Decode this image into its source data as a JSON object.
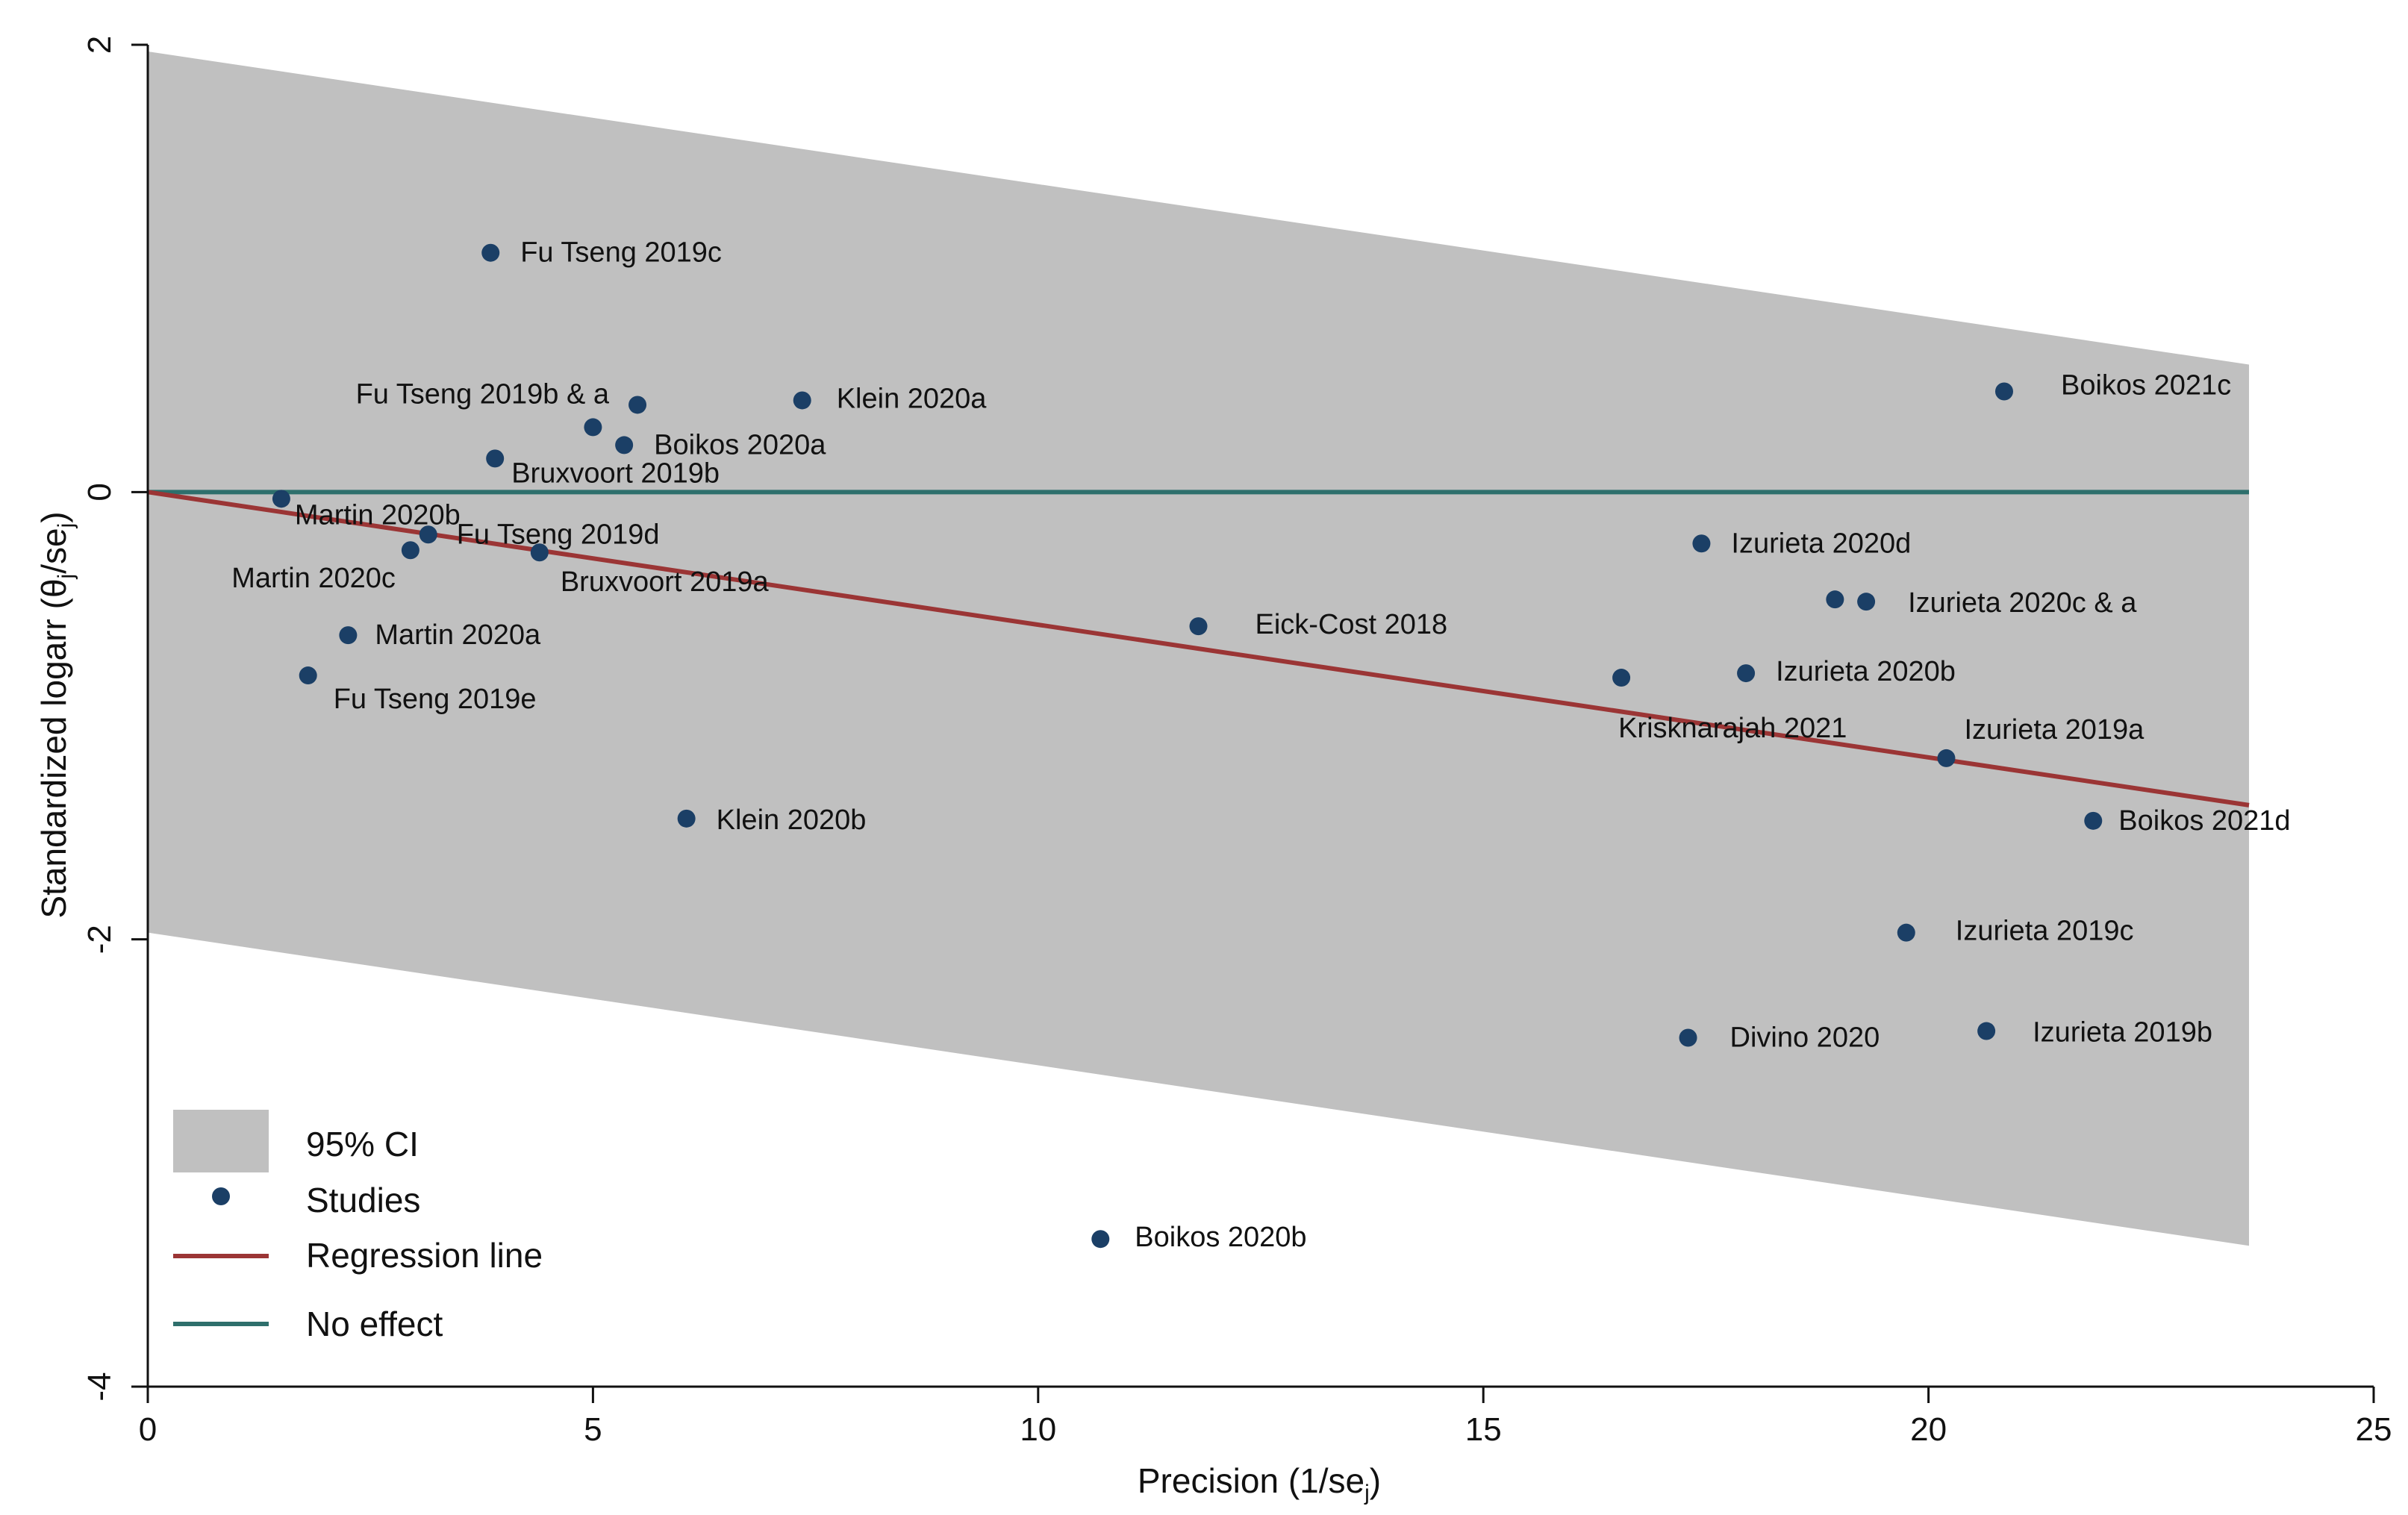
{
  "chart_data": {
    "type": "scatter",
    "title": "",
    "xlabel": "Precision (1/se",
    "xlabel_sub": "j",
    "xlabel_close": ")",
    "ylabel": "Standardized logarr  (θ",
    "ylabel_sub1": "j",
    "ylabel_mid": "/se",
    "ylabel_sub2": "j",
    "ylabel_close": ")",
    "xlim": [
      0,
      25
    ],
    "ylim": [
      -4,
      2
    ],
    "xticks": [
      0,
      5,
      10,
      15,
      20,
      25
    ],
    "yticks": [
      -4,
      -2,
      0,
      2
    ],
    "ci_band": {
      "x": [
        0,
        23.6
      ],
      "upper": [
        1.97,
        0.57
      ],
      "lower": [
        -1.97,
        -3.37
      ],
      "color": "#c0c0c0"
    },
    "regression_line": {
      "x": [
        0,
        23.6
      ],
      "y": [
        0,
        -1.4
      ],
      "color": "#9b3535"
    },
    "no_effect_line": {
      "x": [
        0,
        23.6
      ],
      "y": [
        0,
        0
      ],
      "color": "#2e6f6c"
    },
    "point_color": "#1b3f66",
    "points": [
      {
        "name": "Fu Tseng 2019c",
        "x": 3.85,
        "y": 1.07
      },
      {
        "name": "Fu Tseng 2019b & a",
        "x": 5.5,
        "y": 0.39
      },
      {
        "name": "",
        "x": 5.0,
        "y": 0.29
      },
      {
        "name": "Boikos 2020a",
        "x": 5.35,
        "y": 0.21
      },
      {
        "name": "Klein 2020a",
        "x": 7.35,
        "y": 0.41
      },
      {
        "name": "Bruxvoort 2019b",
        "x": 3.9,
        "y": 0.15
      },
      {
        "name": "Martin 2020b",
        "x": 1.5,
        "y": -0.03
      },
      {
        "name": "Fu Tseng 2019d",
        "x": 3.15,
        "y": -0.19
      },
      {
        "name": "Martin 2020c",
        "x": 2.95,
        "y": -0.26
      },
      {
        "name": "Bruxvoort 2019a",
        "x": 4.4,
        "y": -0.27
      },
      {
        "name": "Martin 2020a",
        "x": 2.25,
        "y": -0.64
      },
      {
        "name": "Fu Tseng 2019e",
        "x": 1.8,
        "y": -0.82
      },
      {
        "name": "Klein 2020b",
        "x": 6.05,
        "y": -1.46
      },
      {
        "name": "Eick-Cost 2018",
        "x": 11.8,
        "y": -0.6
      },
      {
        "name": "Boikos 2020b",
        "x": 10.7,
        "y": -3.34
      },
      {
        "name": "Izurieta 2020d",
        "x": 17.45,
        "y": -0.23
      },
      {
        "name": "Izurieta 2020c & a",
        "x": 19.3,
        "y": -0.49
      },
      {
        "name": "",
        "x": 18.95,
        "y": -0.48
      },
      {
        "name": "Izurieta 2020b",
        "x": 17.95,
        "y": -0.81
      },
      {
        "name": "Krisknarajah 2021",
        "x": 16.55,
        "y": -0.83
      },
      {
        "name": "Izurieta 2019a",
        "x": 20.2,
        "y": -1.19
      },
      {
        "name": "Boikos 2021c",
        "x": 20.85,
        "y": 0.45
      },
      {
        "name": "Boikos 2021d",
        "x": 21.85,
        "y": -1.47
      },
      {
        "name": "Izurieta 2019c",
        "x": 19.75,
        "y": -1.97
      },
      {
        "name": "Izurieta 2019b",
        "x": 20.65,
        "y": -2.41
      },
      {
        "name": "Divino 2020",
        "x": 17.3,
        "y": -2.44
      }
    ],
    "legend": {
      "placement": "bottom-left",
      "items": [
        {
          "label": "95% CI",
          "kind": "area"
        },
        {
          "label": "Studies",
          "kind": "marker"
        },
        {
          "label": "Regression line",
          "kind": "line-regression"
        },
        {
          "label": "No effect",
          "kind": "line-noeffect"
        }
      ]
    }
  }
}
